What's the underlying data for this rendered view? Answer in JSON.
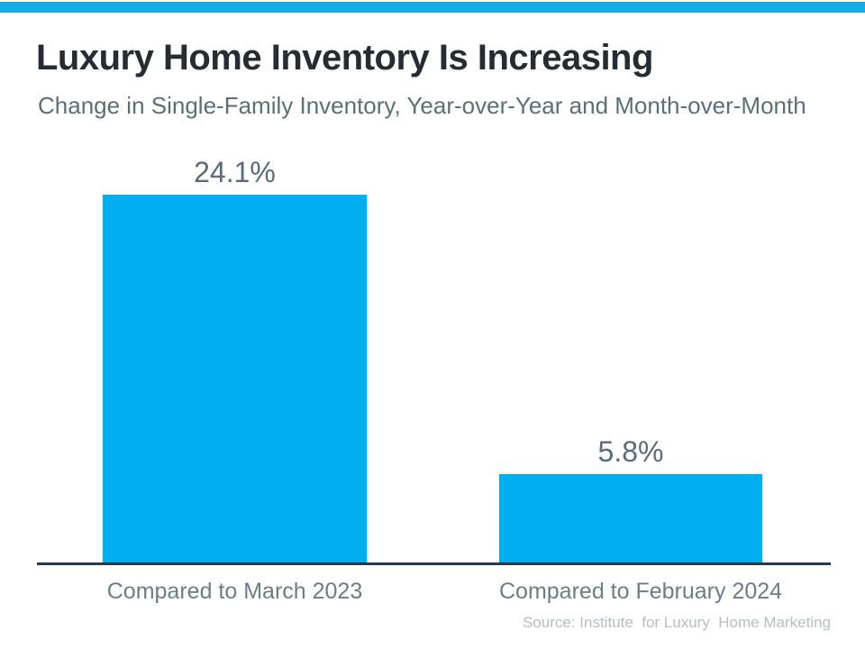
{
  "header": {
    "title": "Luxury Home Inventory Is Increasing",
    "subtitle": "Change in Single-Family Inventory, Year-over-Year and Month-over-Month"
  },
  "chart_data": {
    "type": "bar",
    "title": "Luxury Home Inventory Is Increasing",
    "subtitle": "Change in Single-Family Inventory, Year-over-Year and Month-over-Month",
    "categories": [
      "Compared to March 2023",
      "Compared to February 2024"
    ],
    "values": [
      24.1,
      5.8
    ],
    "value_labels": [
      "24.1%",
      "5.8%"
    ],
    "ylabel": "",
    "xlabel": "",
    "ylim": [
      0,
      25
    ],
    "grid": false,
    "legend": false,
    "bar_color": "#00AEEF"
  },
  "footer": {
    "source": "Source: Institute  for Luxury  Home Marketing"
  },
  "colors": {
    "top_strip": "#15ABEA",
    "bar": "#00AEEF",
    "axis_line": "#2B3A47",
    "title_text": "#262C33",
    "subtitle_text": "#5B6F7B",
    "value_label_text": "#5A6B7A",
    "category_label_text": "#6B7D89",
    "source_text": "#B6BEC4"
  }
}
